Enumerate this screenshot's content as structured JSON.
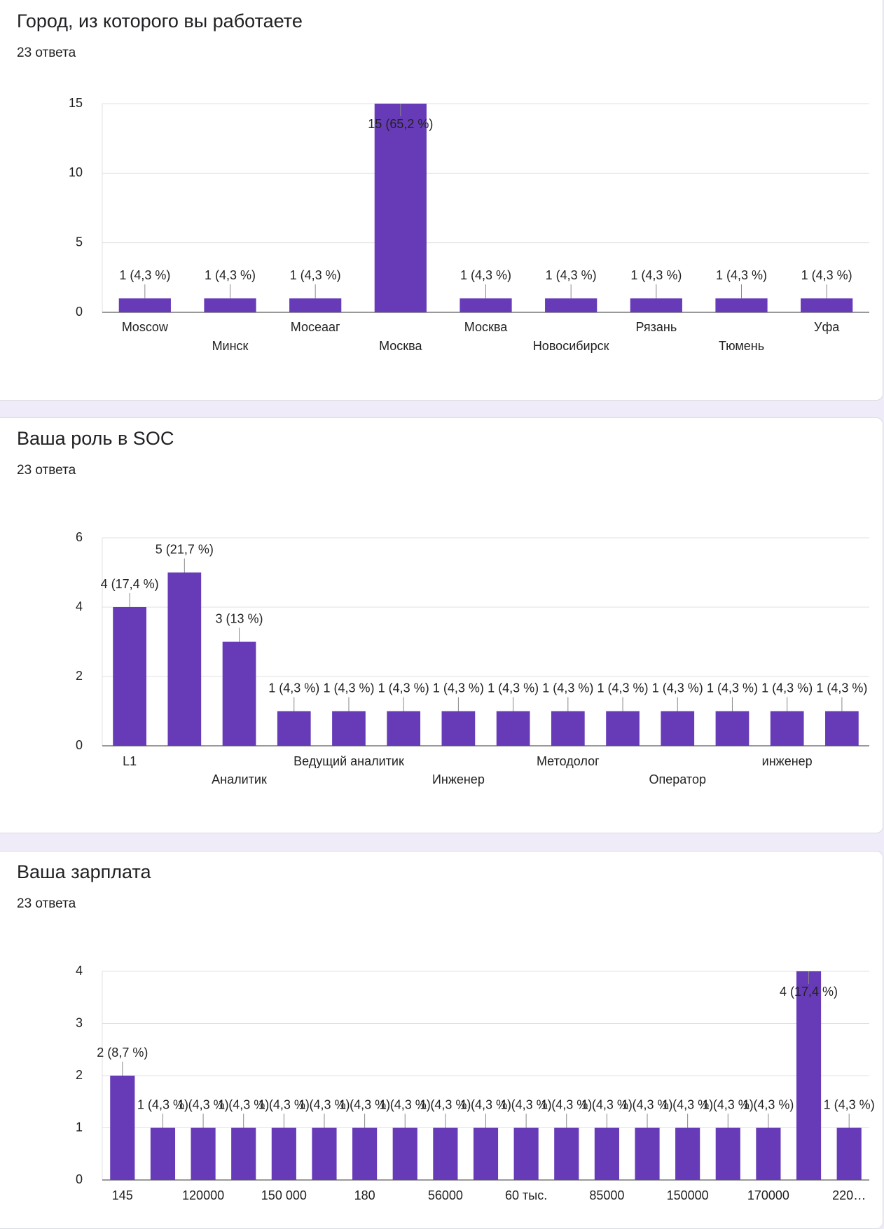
{
  "chart_data": [
    {
      "type": "bar",
      "title": "Город, из которого вы работаете",
      "subtitle": "23 ответа",
      "categories": [
        "Moscow",
        "Минск",
        "Мосеааг",
        "Москва",
        "Москва",
        "Новосибирск",
        "Рязань",
        "Тюмень",
        "Уфа"
      ],
      "values": [
        1,
        1,
        1,
        15,
        1,
        1,
        1,
        1,
        1
      ],
      "value_labels": [
        "1 (4,3 %)",
        "1 (4,3 %)",
        "1 (4,3 %)",
        "15 (65,2 %)",
        "1 (4,3 %)",
        "1 (4,3 %)",
        "1 (4,3 %)",
        "1 (4,3 %)",
        "1 (4,3 %)"
      ],
      "color": "#673ab7",
      "ylim": [
        0,
        15
      ],
      "yticks": [
        0,
        5,
        10,
        15
      ],
      "grid": true,
      "staggered_labels": true
    },
    {
      "type": "bar",
      "title": "Ваша роль в SOC",
      "subtitle": "23 ответа",
      "categories": [
        "L1",
        null,
        "Аналитик",
        null,
        "Ведущий аналитик",
        null,
        "Инженер",
        null,
        "Методолог",
        null,
        "Оператор",
        null,
        "инженер",
        null
      ],
      "values": [
        4,
        5,
        3,
        1,
        1,
        1,
        1,
        1,
        1,
        1,
        1,
        1,
        1,
        1
      ],
      "value_labels": [
        "4 (17,4 %)",
        "5 (21,7 %)",
        "3 (13 %)",
        "1 (4,3 %)",
        "1 (4,3 %)",
        "1 (4,3 %)",
        "1 (4,3 %)",
        "1 (4,3 %)",
        "1 (4,3 %)",
        "1 (4,3 %)",
        "1 (4,3 %)",
        "1 (4,3 %)",
        "1 (4,3 %)",
        "1 (4,3 %)"
      ],
      "color": "#673ab7",
      "ylim": [
        0,
        6
      ],
      "yticks": [
        0,
        2,
        4,
        6
      ],
      "grid": true,
      "staggered_labels": true
    },
    {
      "type": "bar",
      "title": "Ваша зарплата",
      "subtitle": "23 ответа",
      "categories": [
        "145",
        null,
        "120000",
        null,
        "150 000",
        null,
        "180",
        null,
        "56000",
        null,
        "60 тыс.",
        null,
        "85000",
        null,
        "150000",
        null,
        "170000",
        null,
        "220…"
      ],
      "values": [
        2,
        1,
        1,
        1,
        1,
        1,
        1,
        1,
        1,
        1,
        1,
        1,
        1,
        1,
        1,
        1,
        1,
        4,
        1
      ],
      "value_labels": [
        "2 (8,7 %)",
        "1 (4,3 %)",
        "1 (4,3 %)",
        "1 (4,3 %)",
        "1 (4,3 %)",
        "1 (4,3 %)",
        "1 (4,3 %)",
        "1 (4,3 %)",
        "1 (4,3 %)",
        "1 (4,3 %)",
        "1 (4,3 %)",
        "1 (4,3 %)",
        "1 (4,3 %)",
        "1 (4,3 %)",
        "1 (4,3 %)",
        "1 (4,3 %)",
        "1 (4,3 %)",
        "4 (17,4 %)",
        "1 (4,3 %)"
      ],
      "color": "#673ab7",
      "ylim": [
        0,
        4
      ],
      "yticks": [
        0,
        1,
        2,
        3,
        4
      ],
      "grid": true,
      "staggered_labels": false
    }
  ]
}
